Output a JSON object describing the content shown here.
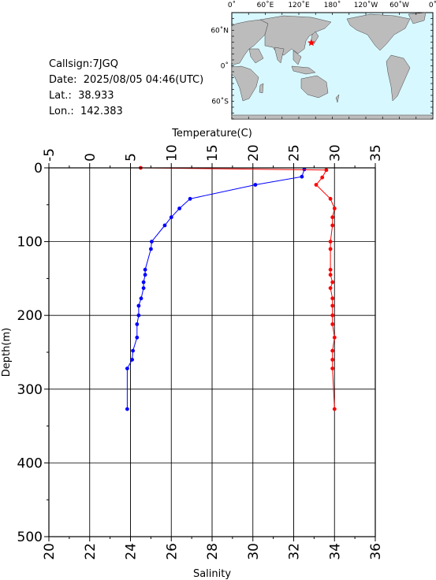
{
  "info": {
    "callsign": "Callsign:7JGQ",
    "date_label": "Date:",
    "date_value": "2025/08/05 04:46(UTC)",
    "lat_label": "Lat.:",
    "lat_value": "38.933",
    "lon_label": "Lon.:",
    "lon_value": "142.383"
  },
  "map": {
    "lon_ticks": [
      "0˚",
      "60˚E",
      "120˚E",
      "180˚",
      "120˚W",
      "60˚W",
      "0˚"
    ],
    "lat_ticks": [
      "60˚N",
      "0˚",
      "60˚S"
    ],
    "ocean_color": "#d8f8ff",
    "land_color": "#bcbcbc",
    "marker_color": "#ff0000",
    "station": {
      "lon": 142.383,
      "lat": 38.933
    }
  },
  "chart_data": {
    "type": "line",
    "y_axis": {
      "label": "Depth(m)",
      "range": [
        0,
        500
      ],
      "ticks": [
        0,
        100,
        200,
        300,
        400,
        500
      ],
      "reversed": true
    },
    "x_axis_top": {
      "label": "Temperature(C)",
      "range": [
        -5,
        35
      ],
      "ticks": [
        -5,
        0,
        5,
        10,
        15,
        20,
        25,
        30,
        35
      ]
    },
    "x_axis_bottom": {
      "label": "Salinity",
      "range": [
        20,
        36
      ],
      "ticks": [
        20,
        22,
        24,
        26,
        28,
        30,
        32,
        34,
        36
      ]
    },
    "grid": true,
    "series": [
      {
        "variable": "temperature",
        "color": "#0000ff",
        "points": [
          [
            26.3,
            2
          ],
          [
            26.0,
            12
          ],
          [
            20.3,
            23
          ],
          [
            12.3,
            42
          ],
          [
            11.0,
            55
          ],
          [
            10.0,
            67
          ],
          [
            9.2,
            78
          ],
          [
            7.6,
            100
          ],
          [
            7.5,
            110
          ],
          [
            6.8,
            138
          ],
          [
            6.8,
            145
          ],
          [
            6.6,
            155
          ],
          [
            6.6,
            163
          ],
          [
            6.3,
            177
          ],
          [
            6.0,
            187
          ],
          [
            6.0,
            200
          ],
          [
            5.8,
            212
          ],
          [
            5.8,
            230
          ],
          [
            5.3,
            248
          ],
          [
            5.2,
            260
          ],
          [
            4.6,
            272
          ],
          [
            4.6,
            327
          ]
        ]
      },
      {
        "variable": "salinity",
        "color": "#ff0000",
        "points": [
          [
            24.5,
            0
          ],
          [
            33.6,
            3
          ],
          [
            33.4,
            13
          ],
          [
            33.1,
            23
          ],
          [
            33.8,
            42
          ],
          [
            34.0,
            55
          ],
          [
            33.9,
            67
          ],
          [
            33.9,
            78
          ],
          [
            33.8,
            100
          ],
          [
            33.8,
            110
          ],
          [
            33.8,
            138
          ],
          [
            33.8,
            145
          ],
          [
            33.9,
            155
          ],
          [
            33.8,
            163
          ],
          [
            33.9,
            177
          ],
          [
            33.9,
            187
          ],
          [
            33.9,
            200
          ],
          [
            33.9,
            212
          ],
          [
            34.0,
            230
          ],
          [
            33.9,
            248
          ],
          [
            33.9,
            260
          ],
          [
            33.9,
            272
          ],
          [
            34.0,
            327
          ]
        ]
      }
    ]
  }
}
